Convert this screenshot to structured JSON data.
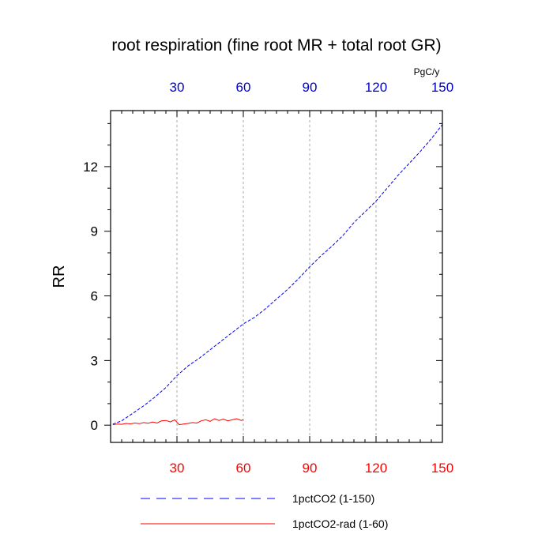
{
  "chart_data": {
    "type": "line",
    "title": "root respiration (fine root MR + total root GR)",
    "ylabel": "RR",
    "xlabel": "",
    "xlim": [
      0,
      150
    ],
    "ylim": [
      -0.8,
      14.6
    ],
    "grid": "vertical dashed at x ticks",
    "x_ticks_bottom": [
      30,
      60,
      90,
      120,
      150
    ],
    "x_ticks_top": [
      30,
      60,
      90,
      120,
      150
    ],
    "top_axis_unit": "PgC/y",
    "y_ticks": [
      0,
      3,
      6,
      9,
      12
    ],
    "colors": {
      "bottom_axis": "#ff0000",
      "top_axis": "#0000cc",
      "series_1": "#0000ff",
      "series_2": "#ff0000"
    },
    "legend_position": "bottom",
    "series": [
      {
        "name": "1pctCO2 (1-150)",
        "color": "#0000ff",
        "style": "dashed",
        "x": [
          1,
          5,
          10,
          15,
          20,
          25,
          30,
          35,
          40,
          45,
          50,
          55,
          60,
          65,
          70,
          75,
          80,
          85,
          90,
          95,
          100,
          105,
          110,
          115,
          120,
          125,
          130,
          135,
          140,
          145,
          150
        ],
        "y": [
          0.05,
          0.2,
          0.55,
          0.9,
          1.3,
          1.75,
          2.3,
          2.75,
          3.1,
          3.5,
          3.9,
          4.3,
          4.7,
          5.0,
          5.4,
          5.85,
          6.3,
          6.8,
          7.35,
          7.85,
          8.3,
          8.8,
          9.4,
          9.9,
          10.4,
          11.0,
          11.6,
          12.15,
          12.7,
          13.3,
          13.95
        ]
      },
      {
        "name": "1pctCO2-rad (1-60)",
        "color": "#ff0000",
        "style": "solid",
        "x": [
          1,
          3,
          5,
          7,
          9,
          11,
          13,
          15,
          17,
          19,
          21,
          23,
          25,
          27,
          29,
          31,
          33,
          35,
          37,
          39,
          41,
          43,
          45,
          47,
          49,
          51,
          53,
          55,
          57,
          59,
          60
        ],
        "y": [
          0.02,
          0.05,
          0.04,
          0.08,
          0.06,
          0.1,
          0.07,
          0.12,
          0.09,
          0.15,
          0.1,
          0.2,
          0.22,
          0.15,
          0.25,
          0.02,
          0.05,
          0.08,
          0.12,
          0.1,
          0.2,
          0.25,
          0.18,
          0.3,
          0.22,
          0.28,
          0.2,
          0.25,
          0.3,
          0.22,
          0.25
        ]
      }
    ]
  }
}
